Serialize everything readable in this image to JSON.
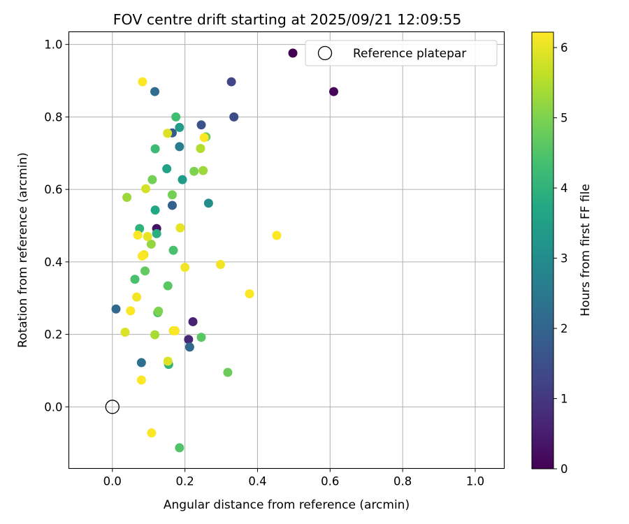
{
  "chart_data": {
    "type": "scatter",
    "title": "FOV centre drift starting at 2025/09/21 12:09:55",
    "xlabel": "Angular distance from reference (arcmin)",
    "ylabel": "Rotation from reference (arcmin)",
    "xlim": [
      -0.12,
      1.08
    ],
    "ylim": [
      -0.17,
      1.035
    ],
    "xticks": [
      "0.0",
      "0.2",
      "0.4",
      "0.6",
      "0.8",
      "1.0"
    ],
    "yticks": [
      "0.0",
      "0.2",
      "0.4",
      "0.6",
      "0.8",
      "1.0"
    ],
    "grid": true,
    "colorbar": {
      "label": "Hours from first FF file",
      "range": [
        0,
        6.22
      ],
      "ticks": [
        "0",
        "1",
        "2",
        "3",
        "4",
        "5",
        "6"
      ],
      "colormap": "viridis"
    },
    "legend": {
      "placement": "top-right",
      "entries": [
        {
          "label": "",
          "marker": "filled-circle",
          "color": "#440154"
        },
        {
          "label": "Reference platepar",
          "marker": "open-circle",
          "color": "#000000"
        }
      ]
    },
    "reference_point": {
      "x": 0.0,
      "y": 0.0,
      "label": "Reference platepar"
    },
    "points": [
      {
        "x": 0.61,
        "y": 0.87,
        "h": 0.1
      },
      {
        "x": 0.21,
        "y": 0.186,
        "h": 0.7
      },
      {
        "x": 0.222,
        "y": 0.235,
        "h": 0.6
      },
      {
        "x": 0.122,
        "y": 0.492,
        "h": 0.3
      },
      {
        "x": 0.328,
        "y": 0.897,
        "h": 1.3
      },
      {
        "x": 0.335,
        "y": 0.8,
        "h": 1.4
      },
      {
        "x": 0.245,
        "y": 0.778,
        "h": 1.6
      },
      {
        "x": 0.165,
        "y": 0.756,
        "h": 1.8
      },
      {
        "x": 0.165,
        "y": 0.556,
        "h": 1.9
      },
      {
        "x": 0.213,
        "y": 0.165,
        "h": 2.1
      },
      {
        "x": 0.117,
        "y": 0.87,
        "h": 2.2
      },
      {
        "x": 0.01,
        "y": 0.27,
        "h": 2.1
      },
      {
        "x": 0.08,
        "y": 0.122,
        "h": 2.3
      },
      {
        "x": 0.185,
        "y": 0.718,
        "h": 2.6
      },
      {
        "x": 0.265,
        "y": 0.562,
        "h": 3.0
      },
      {
        "x": 0.193,
        "y": 0.627,
        "h": 3.4
      },
      {
        "x": 0.15,
        "y": 0.657,
        "h": 3.6
      },
      {
        "x": 0.185,
        "y": 0.771,
        "h": 3.4
      },
      {
        "x": 0.118,
        "y": 0.543,
        "h": 3.7
      },
      {
        "x": 0.122,
        "y": 0.478,
        "h": 3.9
      },
      {
        "x": 0.075,
        "y": 0.492,
        "h": 4.0
      },
      {
        "x": 0.155,
        "y": 0.117,
        "h": 4.0
      },
      {
        "x": 0.118,
        "y": 0.712,
        "h": 4.2
      },
      {
        "x": 0.175,
        "y": 0.8,
        "h": 4.3
      },
      {
        "x": 0.168,
        "y": 0.432,
        "h": 4.4
      },
      {
        "x": 0.062,
        "y": 0.352,
        "h": 4.4
      },
      {
        "x": 0.153,
        "y": 0.334,
        "h": 4.6
      },
      {
        "x": 0.125,
        "y": 0.26,
        "h": 4.5
      },
      {
        "x": 0.245,
        "y": 0.192,
        "h": 4.6
      },
      {
        "x": 0.185,
        "y": -0.113,
        "h": 4.5
      },
      {
        "x": 0.258,
        "y": 0.745,
        "h": 4.7
      },
      {
        "x": 0.09,
        "y": 0.375,
        "h": 4.7
      },
      {
        "x": 0.318,
        "y": 0.095,
        "h": 4.8
      },
      {
        "x": 0.11,
        "y": 0.627,
        "h": 4.9
      },
      {
        "x": 0.165,
        "y": 0.585,
        "h": 4.9
      },
      {
        "x": 0.225,
        "y": 0.65,
        "h": 5.0
      },
      {
        "x": 0.127,
        "y": 0.264,
        "h": 5.0
      },
      {
        "x": 0.04,
        "y": 0.578,
        "h": 5.3
      },
      {
        "x": 0.107,
        "y": 0.449,
        "h": 5.2
      },
      {
        "x": 0.25,
        "y": 0.652,
        "h": 5.3
      },
      {
        "x": 0.117,
        "y": 0.199,
        "h": 5.4
      },
      {
        "x": 0.243,
        "y": 0.713,
        "h": 5.5
      },
      {
        "x": 0.092,
        "y": 0.602,
        "h": 5.8
      },
      {
        "x": 0.035,
        "y": 0.206,
        "h": 5.9
      },
      {
        "x": 0.153,
        "y": 0.126,
        "h": 5.9
      },
      {
        "x": 0.152,
        "y": 0.755,
        "h": 5.9
      },
      {
        "x": 0.187,
        "y": 0.494,
        "h": 6.0
      },
      {
        "x": 0.097,
        "y": 0.47,
        "h": 6.0
      },
      {
        "x": 0.083,
        "y": 0.897,
        "h": 6.2
      },
      {
        "x": 0.07,
        "y": 0.474,
        "h": 6.2
      },
      {
        "x": 0.087,
        "y": 0.42,
        "h": 6.1
      },
      {
        "x": 0.082,
        "y": 0.416,
        "h": 6.2
      },
      {
        "x": 0.067,
        "y": 0.303,
        "h": 6.1
      },
      {
        "x": 0.05,
        "y": 0.265,
        "h": 6.2
      },
      {
        "x": 0.08,
        "y": 0.074,
        "h": 6.2
      },
      {
        "x": 0.108,
        "y": -0.072,
        "h": 6.2
      },
      {
        "x": 0.168,
        "y": 0.21,
        "h": 6.1
      },
      {
        "x": 0.173,
        "y": 0.21,
        "h": 6.2
      },
      {
        "x": 0.2,
        "y": 0.385,
        "h": 6.1
      },
      {
        "x": 0.253,
        "y": 0.743,
        "h": 6.2
      },
      {
        "x": 0.298,
        "y": 0.393,
        "h": 6.1
      },
      {
        "x": 0.378,
        "y": 0.312,
        "h": 6.2
      },
      {
        "x": 0.453,
        "y": 0.473,
        "h": 6.2
      }
    ]
  }
}
